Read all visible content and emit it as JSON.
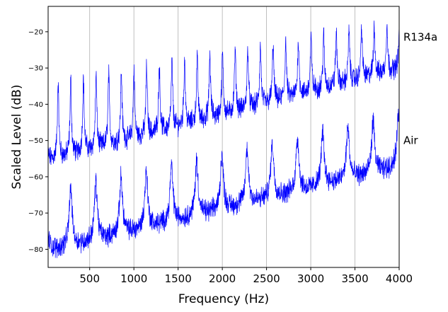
{
  "chart_data": {
    "type": "line",
    "title": "",
    "xlabel": "Frequency (Hz)",
    "ylabel": "Scaled Level (dB)",
    "xlim": [
      30,
      4000
    ],
    "ylim": [
      -85,
      -13
    ],
    "xticks": [
      500,
      1000,
      1500,
      2000,
      2500,
      3000,
      3500,
      4000
    ],
    "yticks": [
      -80,
      -70,
      -60,
      -50,
      -40,
      -30,
      -20
    ],
    "grid": "vertical",
    "legend": "none",
    "line_color": "#0000ff",
    "series": [
      {
        "name": "R134a",
        "peak_spacing_hz": 143,
        "first_peak_hz": 143,
        "peak_level": {
          "x": [
            143,
            4000
          ],
          "y": [
            -34,
            -17
          ]
        },
        "trough_level": {
          "x": [
            100,
            4000
          ],
          "y": [
            -55,
            -30
          ]
        }
      },
      {
        "name": "Air",
        "peak_spacing_hz": 285,
        "first_peak_hz": 285,
        "peak_level": {
          "x": [
            285,
            4000
          ],
          "y": [
            -63,
            -43
          ]
        },
        "trough_level": {
          "x": [
            100,
            4000
          ],
          "y": [
            -80,
            -57
          ]
        }
      }
    ]
  }
}
